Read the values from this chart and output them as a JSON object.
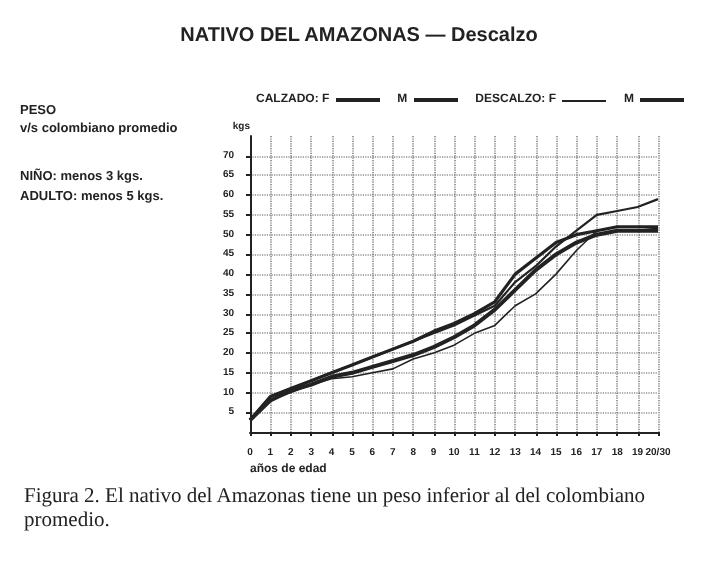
{
  "chart_data": {
    "type": "line",
    "title": "NATIVO DEL AMAZONAS — Descalzo",
    "xlabel": "años de edad",
    "ylabel": "kgs",
    "annotations": [
      "PESO",
      "v/s colombiano promedio",
      "NIÑO: menos 3 kgs.",
      "ADULTO: menos 5 kgs.",
      "Figura 2. El nativo del Amazonas tiene un peso inferior al del colombiano promedio."
    ],
    "x": [
      0,
      1,
      2,
      3,
      4,
      5,
      6,
      7,
      8,
      9,
      10,
      11,
      12,
      13,
      14,
      15,
      16,
      17,
      18,
      19,
      20
    ],
    "series": [
      {
        "name": "CALZADO: F",
        "color": "#222222",
        "values": [
          3,
          9,
          11,
          13,
          15,
          17,
          19,
          21,
          23,
          25.5,
          27.5,
          30,
          33,
          40,
          44,
          48,
          50,
          51,
          52,
          52,
          52
        ]
      },
      {
        "name": "M",
        "color": "#222222",
        "values": [
          3,
          9,
          11,
          13,
          15,
          17,
          19,
          21,
          23,
          25,
          27,
          29.5,
          32,
          38,
          42,
          47,
          51,
          55,
          56,
          57,
          59
        ]
      },
      {
        "name": "DESCALZO: F",
        "color": "#222222",
        "values": [
          3,
          8,
          10,
          12,
          13.5,
          14,
          15,
          16,
          18.5,
          20,
          22,
          25,
          27,
          32,
          35,
          40,
          46,
          51,
          52,
          52,
          51.5
        ]
      },
      {
        "name": "M",
        "color": "#222222",
        "values": [
          3,
          8,
          10.5,
          12,
          14,
          15,
          16.5,
          18,
          19.5,
          21.5,
          24,
          27,
          31,
          36,
          41,
          45,
          48,
          50,
          51,
          51,
          51
        ]
      }
    ],
    "xlim": [
      0,
      20
    ],
    "xticks": [
      0,
      1,
      2,
      3,
      4,
      5,
      6,
      7,
      8,
      9,
      10,
      11,
      12,
      13,
      14,
      15,
      16,
      17,
      18,
      19,
      {
        "value": 20,
        "label": "20/30"
      }
    ],
    "ylim": [
      0,
      75
    ],
    "yticks": [
      5,
      10,
      15,
      20,
      25,
      30,
      35,
      40,
      45,
      50,
      55,
      60,
      65,
      70
    ],
    "grid": true,
    "legend": "top",
    "marker": "none"
  }
}
